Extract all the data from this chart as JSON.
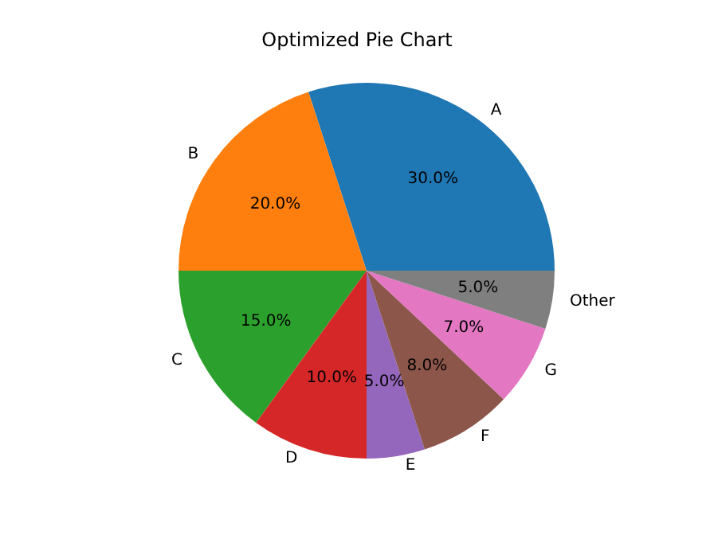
{
  "chart_data": {
    "type": "pie",
    "title": "Optimized Pie Chart",
    "categories": [
      "A",
      "B",
      "C",
      "D",
      "E",
      "F",
      "G",
      "Other"
    ],
    "values": [
      30,
      20,
      15,
      10,
      5,
      8,
      7,
      5
    ],
    "colors": [
      "#1f77b4",
      "#ff7f0e",
      "#2ca02c",
      "#d62728",
      "#9467bd",
      "#8c564b",
      "#e377c2",
      "#7f7f7f"
    ],
    "value_labels": [
      "30.0%",
      "20.0%",
      "15.0%",
      "10.0%",
      "5.0%",
      "8.0%",
      "7.0%",
      "5.0%"
    ],
    "legend": false
  }
}
